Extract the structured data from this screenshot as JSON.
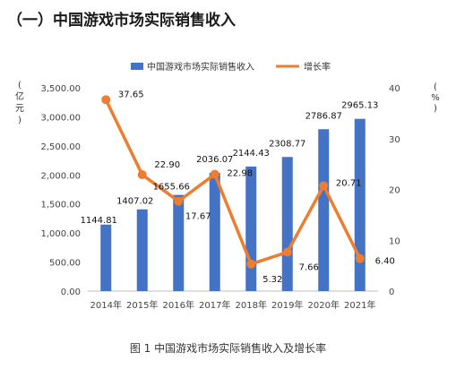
{
  "heading": "（一）中国游戏市场实际销售收入",
  "caption": "图 1 中国游戏市场实际销售收入及增长率",
  "chart_data": {
    "type": "bar",
    "title": "",
    "categories": [
      "2014年",
      "2015年",
      "2016年",
      "2017年",
      "2018年",
      "2019年",
      "2020年",
      "2021年"
    ],
    "series": [
      {
        "name": "中国游戏市场实际销售收入",
        "type": "bar",
        "axis": "left",
        "color": "#4472C4",
        "values": [
          1144.81,
          1407.02,
          1655.66,
          2036.07,
          2144.43,
          2308.77,
          2786.87,
          2965.13
        ],
        "labels": [
          "1144.81",
          "1407.02",
          "1655.66",
          "2036.07",
          "2144.43",
          "2308.77",
          "2786.87",
          "2965.13"
        ]
      },
      {
        "name": "增长率",
        "type": "line",
        "axis": "right",
        "color": "#ED7D31",
        "values": [
          37.65,
          22.9,
          17.67,
          22.98,
          5.32,
          7.66,
          20.71,
          6.4
        ],
        "labels": [
          "37.65",
          "22.90",
          "17.67",
          "22.98",
          "5.32",
          "7.66",
          "20.71",
          "6.40"
        ]
      }
    ],
    "ylabel_left": "亿元",
    "ylabel_right": "%",
    "ylim_left": [
      0,
      3500
    ],
    "yticks_left": [
      "0.00",
      "500.00",
      "1,000.00",
      "1,500.00",
      "2,000.00",
      "2,500.00",
      "3,000.00",
      "3,500.00"
    ],
    "ylim_right": [
      0,
      40
    ],
    "yticks_right": [
      "0",
      "10",
      "20",
      "30",
      "40"
    ],
    "grid": false,
    "legend_position": "top-center"
  }
}
